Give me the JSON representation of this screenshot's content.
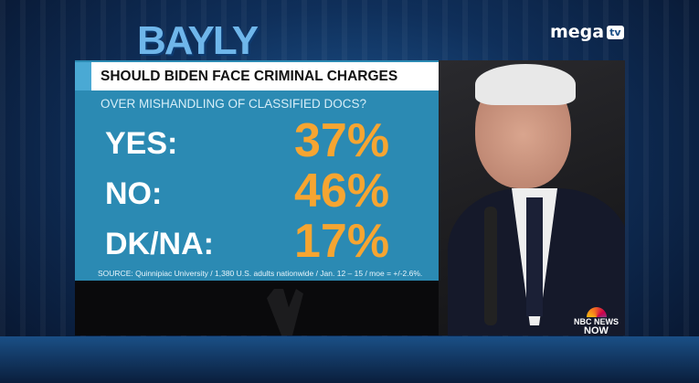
{
  "show_logo": "BAYLY",
  "channel_logo": {
    "text": "mega",
    "badge": "tv"
  },
  "graphic": {
    "title": "SHOULD BIDEN FACE CRIMINAL CHARGES",
    "subtitle": "OVER MISHANDLING OF CLASSIFIED DOCS?",
    "results": [
      {
        "label": "YES:",
        "value": "37%"
      },
      {
        "label": "NO:",
        "value": "46%"
      },
      {
        "label": "DK/NA:",
        "value": "17%"
      }
    ],
    "source": "SOURCE: Quinnipiac University / 1,380 U.S. adults nationwide / Jan. 12 – 15 / moe = +/-2.6%.",
    "colors": {
      "panel": "#2b8ab3",
      "value": "#f6a531",
      "label": "#ffffff"
    }
  },
  "network_bug": {
    "line1": "NBC NEWS",
    "line2": "NOW"
  }
}
